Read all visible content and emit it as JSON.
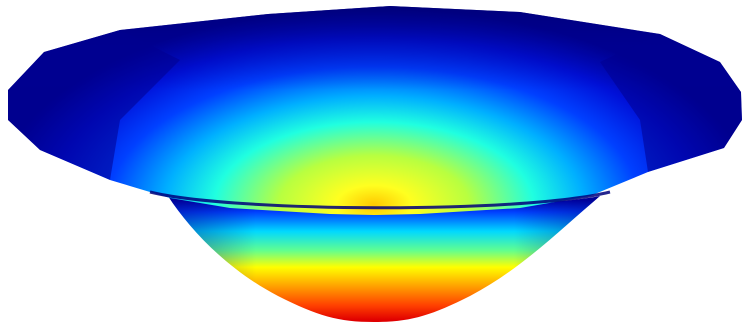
{
  "scene": {
    "background": "#ffffff",
    "subject": "bowl-shaped-surface-rendering",
    "colormap": {
      "name": "jet",
      "stops": [
        "#00008f",
        "#0000ff",
        "#0080ff",
        "#00ffff",
        "#80ff80",
        "#ffff00",
        "#ff8000",
        "#ff0000"
      ]
    },
    "rim_color": "#00008b"
  }
}
